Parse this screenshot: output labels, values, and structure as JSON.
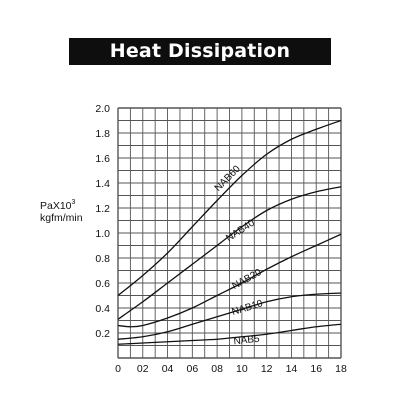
{
  "title": "Heat Dissipation",
  "chart_data": {
    "type": "line",
    "ylabel": {
      "base": "PaX10",
      "exponent": "3",
      "unit": "kgfm/min"
    },
    "xlabel": "",
    "xlim": [
      0,
      18
    ],
    "ylim": [
      0,
      20
    ],
    "grid": true,
    "x_ticks": [
      {
        "value": 0,
        "label": "0"
      },
      {
        "value": 2,
        "label": "02"
      },
      {
        "value": 4,
        "label": "04"
      },
      {
        "value": 6,
        "label": "06"
      },
      {
        "value": 8,
        "label": "08"
      },
      {
        "value": 10,
        "label": "10"
      },
      {
        "value": 12,
        "label": "12"
      },
      {
        "value": 14,
        "label": "14"
      },
      {
        "value": 16,
        "label": "16"
      },
      {
        "value": 18,
        "label": "18"
      }
    ],
    "y_ticks": [
      {
        "value": 2,
        "label": "0.2"
      },
      {
        "value": 4,
        "label": "0.4"
      },
      {
        "value": 6,
        "label": "0.6"
      },
      {
        "value": 8,
        "label": "0.8"
      },
      {
        "value": 10,
        "label": "1.0"
      },
      {
        "value": 12,
        "label": "1.2"
      },
      {
        "value": 14,
        "label": "1.4"
      },
      {
        "value": 16,
        "label": "1.6"
      },
      {
        "value": 18,
        "label": "1.8"
      },
      {
        "value": 20,
        "label": "2.0"
      }
    ],
    "series": [
      {
        "name": "NAB60",
        "label_at": [
          9,
          14.2
        ],
        "x": [
          0,
          2,
          4,
          6,
          8,
          10,
          12,
          14,
          16,
          18
        ],
        "y": [
          5.0,
          6.6,
          8.4,
          10.5,
          12.6,
          14.6,
          16.3,
          17.5,
          18.3,
          19.0
        ]
      },
      {
        "name": "NAB40",
        "label_at": [
          10,
          10.0
        ],
        "x": [
          0,
          2,
          4,
          6,
          8,
          10,
          12,
          14,
          16,
          18
        ],
        "y": [
          3.1,
          4.5,
          6.0,
          7.5,
          9.0,
          10.5,
          11.8,
          12.7,
          13.3,
          13.7
        ]
      },
      {
        "name": "NAB20",
        "label_at": [
          10.5,
          6.1
        ],
        "x": [
          0,
          1,
          2,
          4,
          6,
          8,
          10,
          12,
          14,
          16,
          18
        ],
        "y": [
          2.6,
          2.5,
          2.6,
          3.2,
          4.0,
          5.0,
          6.0,
          7.1,
          8.1,
          9.0,
          9.9
        ]
      },
      {
        "name": "NAB10",
        "label_at": [
          10.5,
          3.8
        ],
        "x": [
          0,
          2,
          4,
          6,
          8,
          10,
          12,
          14,
          16,
          18
        ],
        "y": [
          1.5,
          1.7,
          2.1,
          2.7,
          3.3,
          3.9,
          4.5,
          4.9,
          5.1,
          5.2
        ]
      },
      {
        "name": "NAB5",
        "label_at": [
          10.4,
          1.2
        ],
        "x": [
          0,
          2,
          4,
          6,
          8,
          10,
          12,
          14,
          16,
          18
        ],
        "y": [
          1.1,
          1.2,
          1.3,
          1.4,
          1.5,
          1.7,
          1.9,
          2.2,
          2.5,
          2.7
        ]
      }
    ]
  }
}
